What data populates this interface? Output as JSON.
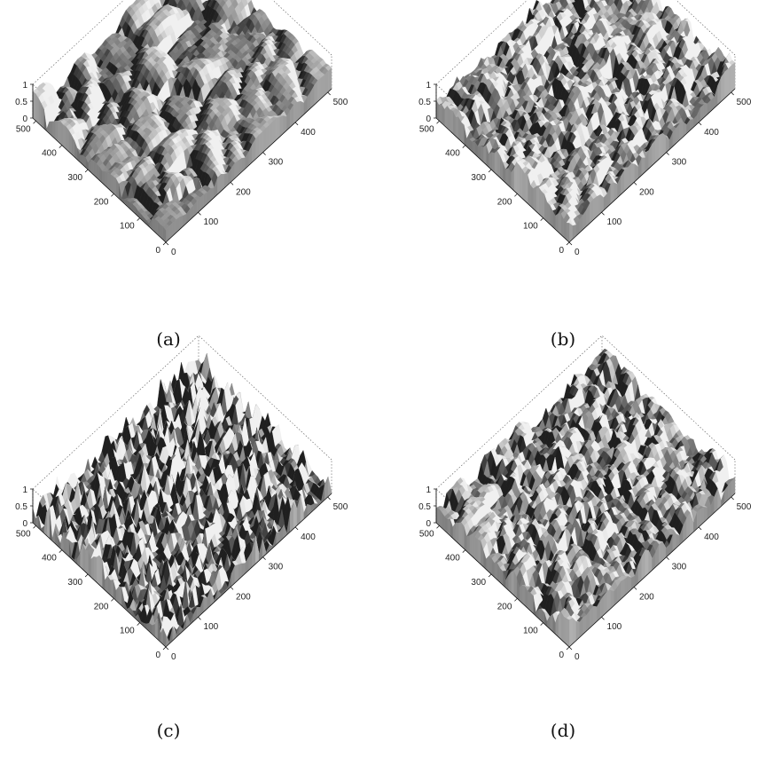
{
  "chart_data": [
    {
      "type": "surface",
      "caption": "(a)",
      "x_ticks": [
        "0",
        "100",
        "200",
        "300",
        "400",
        "500"
      ],
      "y_ticks": [
        "0",
        "100",
        "200",
        "300",
        "400",
        "500"
      ],
      "z_ticks": [
        "0",
        "0.5",
        "1"
      ],
      "xlim": [
        0,
        512
      ],
      "ylim": [
        0,
        512
      ],
      "zlim": [
        0,
        1
      ],
      "grid": true,
      "colormap": "gray",
      "surface_texture": "large smooth grains",
      "grain_scale": 7,
      "roughness": 0.05,
      "mean_height": 0.55,
      "height_range": 0.35
    },
    {
      "type": "surface",
      "caption": "(b)",
      "x_ticks": [
        "0",
        "100",
        "200",
        "300",
        "400",
        "500"
      ],
      "y_ticks": [
        "0",
        "100",
        "200",
        "300",
        "400",
        "500"
      ],
      "z_ticks": [
        "0",
        "0.5",
        "1"
      ],
      "xlim": [
        0,
        512
      ],
      "ylim": [
        0,
        512
      ],
      "zlim": [
        0,
        1
      ],
      "grid": true,
      "colormap": "gray",
      "surface_texture": "medium grains, bright plateaus",
      "grain_scale": 11,
      "roughness": 0.15,
      "mean_height": 0.68,
      "height_range": 0.3
    },
    {
      "type": "surface",
      "caption": "(c)",
      "x_ticks": [
        "0",
        "100",
        "200",
        "300",
        "400",
        "500"
      ],
      "y_ticks": [
        "0",
        "100",
        "200",
        "300",
        "400",
        "500"
      ],
      "z_ticks": [
        "0",
        "0.5",
        "1"
      ],
      "xlim": [
        0,
        512
      ],
      "ylim": [
        0,
        512
      ],
      "zlim": [
        0,
        1
      ],
      "grid": true,
      "colormap": "gray",
      "surface_texture": "fine rough spikes",
      "grain_scale": 26,
      "roughness": 0.55,
      "mean_height": 0.42,
      "height_range": 0.4
    },
    {
      "type": "surface",
      "caption": "(d)",
      "x_ticks": [
        "0",
        "100",
        "200",
        "300",
        "400",
        "500"
      ],
      "y_ticks": [
        "0",
        "100",
        "200",
        "300",
        "400",
        "500"
      ],
      "z_ticks": [
        "0",
        "0.5",
        "1"
      ],
      "xlim": [
        0,
        512
      ],
      "ylim": [
        0,
        512
      ],
      "zlim": [
        0,
        1
      ],
      "grid": true,
      "colormap": "gray",
      "surface_texture": "medium smooth grains",
      "grain_scale": 14,
      "roughness": 0.1,
      "mean_height": 0.62,
      "height_range": 0.32
    }
  ]
}
